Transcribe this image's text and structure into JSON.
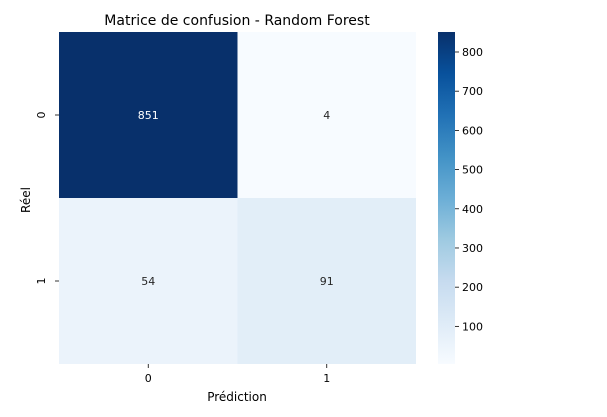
{
  "chart_data": {
    "type": "heatmap",
    "title": "Matrice de confusion - Random Forest",
    "xlabel": "Prédiction",
    "ylabel": "Réel",
    "x_categories": [
      "0",
      "1"
    ],
    "y_categories": [
      "0",
      "1"
    ],
    "values": [
      [
        851,
        4
      ],
      [
        54,
        91
      ]
    ],
    "colormap": "Blues",
    "colorbar": {
      "ticks": [
        100,
        200,
        300,
        400,
        500,
        600,
        700,
        800
      ],
      "range": [
        4,
        851
      ]
    },
    "colors": {
      "low": "#f7fbff",
      "high": "#08306b",
      "annotation_dark_text": "#262626",
      "annotation_light_text": "#ffffff"
    }
  }
}
